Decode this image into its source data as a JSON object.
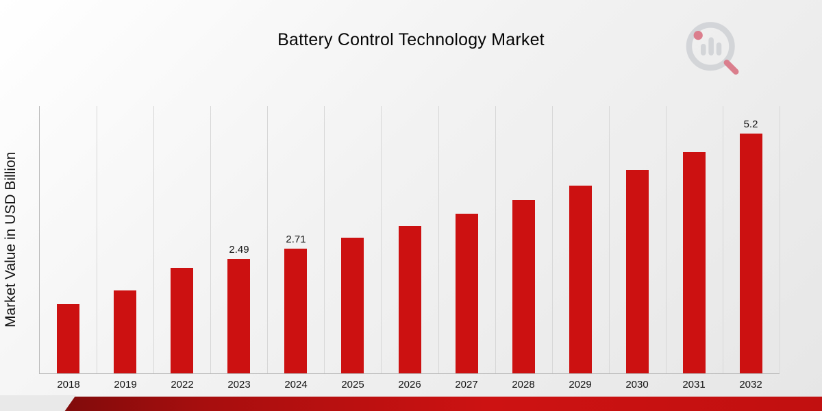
{
  "page": {
    "background_top": "#ffffff",
    "background_bottom": "#e6e6e6"
  },
  "chart_data": {
    "type": "bar",
    "title": "Battery Control Technology Market",
    "ylabel": "Market Value in USD Billion",
    "xlabel": "",
    "categories": [
      "2018",
      "2019",
      "2022",
      "2023",
      "2024",
      "2025",
      "2026",
      "2027",
      "2028",
      "2029",
      "2030",
      "2031",
      "2032"
    ],
    "values": [
      1.5,
      1.8,
      2.29,
      2.49,
      2.71,
      2.94,
      3.19,
      3.46,
      3.76,
      4.08,
      4.42,
      4.8,
      5.2
    ],
    "data_labels": {
      "2023": "2.49",
      "2024": "2.71",
      "2032": "5.2"
    },
    "ylim": [
      0,
      5.8
    ],
    "grid": "vertical-only",
    "legend": "none",
    "bar_color": "#cc1111"
  },
  "branding": {
    "logo_name": "market-research-chart-logo-watermark",
    "ring_color": "#b9bdc4",
    "accent_color": "#c8102e",
    "ribbon_colors": [
      "#6f0a0a",
      "#a70e0e",
      "#cd1212",
      "#c11010"
    ]
  }
}
